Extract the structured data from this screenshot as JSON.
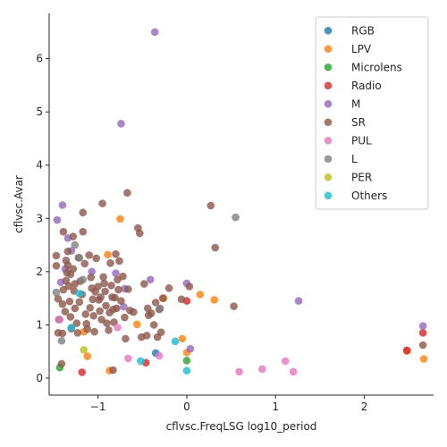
{
  "chart_data": {
    "type": "scatter",
    "title": "",
    "xlabel": "cflvsc.FreqLSG log10_period",
    "ylabel": "cflvsc.Avar",
    "xlim": [
      -1.55,
      2.78
    ],
    "ylim": [
      -0.32,
      6.85
    ],
    "xticks": [
      -1,
      0,
      1,
      2
    ],
    "yticks": [
      0,
      1,
      2,
      3,
      4,
      5,
      6
    ],
    "grid": false,
    "legend_position": "top-right",
    "series": [
      {
        "name": "RGB",
        "color": "#1f77b4",
        "points": [
          [
            -0.35,
            0.47
          ]
        ]
      },
      {
        "name": "LPV",
        "color": "#ff7f0e",
        "points": [
          [
            -0.75,
            2.99
          ],
          [
            -0.89,
            2.32
          ],
          [
            0.15,
            1.57
          ],
          [
            0.31,
            1.47
          ],
          [
            -0.26,
            1.5
          ],
          [
            -0.56,
            1.01
          ],
          [
            -1.16,
            0.87
          ],
          [
            -1.12,
            0.41
          ],
          [
            -0.87,
            0.14
          ],
          [
            0.0,
            0.48
          ],
          [
            2.48,
            0.51
          ],
          [
            2.67,
            0.36
          ],
          [
            -0.05,
            0.74
          ]
        ]
      },
      {
        "name": "Microlens",
        "color": "#2ca02c",
        "points": [
          [
            -1.43,
            0.2
          ],
          [
            0.0,
            0.33
          ]
        ]
      },
      {
        "name": "Radio",
        "color": "#d62728",
        "points": [
          [
            -1.18,
            0.11
          ],
          [
            -0.46,
            0.29
          ],
          [
            0.0,
            1.45
          ],
          [
            2.48,
            0.52
          ],
          [
            2.66,
            0.85
          ]
        ]
      },
      {
        "name": "M",
        "color": "#9467bd",
        "points": [
          [
            -0.36,
            6.5
          ],
          [
            -0.74,
            4.78
          ],
          [
            -1.4,
            3.25
          ],
          [
            -1.46,
            2.97
          ],
          [
            -1.34,
            2.63
          ],
          [
            -1.07,
            2.0
          ],
          [
            -0.41,
            1.85
          ],
          [
            0.0,
            1.78
          ],
          [
            -0.8,
            1.97
          ],
          [
            -0.7,
            1.68
          ],
          [
            -0.71,
            1.34
          ],
          [
            0.04,
            0.55
          ],
          [
            1.26,
            1.45
          ],
          [
            2.66,
            0.98
          ],
          [
            -1.42,
            1.8
          ],
          [
            -1.3,
            2.39
          ],
          [
            -1.37,
            2.05
          ]
        ]
      },
      {
        "name": "SR",
        "color": "#8c564b",
        "points": [
          [
            -1.47,
            2.3
          ],
          [
            -1.47,
            2.11
          ],
          [
            -1.45,
            1.49
          ],
          [
            -1.44,
            1.1
          ],
          [
            -1.45,
            0.85
          ],
          [
            -1.4,
            0.84
          ],
          [
            -1.4,
            1.39
          ],
          [
            -1.39,
            2.75
          ],
          [
            -1.36,
            2.21
          ],
          [
            -1.34,
            2.38
          ],
          [
            -1.35,
            1.98
          ],
          [
            -1.33,
            1.73
          ],
          [
            -1.32,
            1.44
          ],
          [
            -1.31,
            1.15
          ],
          [
            -1.3,
            0.93
          ],
          [
            -1.28,
            2.66
          ],
          [
            -1.28,
            2.05
          ],
          [
            -1.27,
            1.64
          ],
          [
            -1.26,
            1.31
          ],
          [
            -1.24,
            1.03
          ],
          [
            -1.23,
            0.85
          ],
          [
            -1.22,
            2.26
          ],
          [
            -1.2,
            1.82
          ],
          [
            -1.18,
            1.57
          ],
          [
            -1.17,
            3.11
          ],
          [
            -1.17,
            2.75
          ],
          [
            -1.15,
            2.15
          ],
          [
            -1.14,
            1.2
          ],
          [
            -1.13,
            1.02
          ],
          [
            -1.12,
            0.92
          ],
          [
            -1.1,
            2.31
          ],
          [
            -1.08,
            1.89
          ],
          [
            -1.07,
            1.69
          ],
          [
            -1.06,
            1.48
          ],
          [
            -1.05,
            1.17
          ],
          [
            -1.04,
            0.87
          ],
          [
            -1.02,
            2.25
          ],
          [
            -1.0,
            1.72
          ],
          [
            -0.99,
            1.47
          ],
          [
            -0.98,
            1.26
          ],
          [
            -0.96,
            1.1
          ],
          [
            -0.95,
            3.28
          ],
          [
            -0.94,
            1.9
          ],
          [
            -0.92,
            1.63
          ],
          [
            -0.91,
            1.36
          ],
          [
            -0.9,
            1.03
          ],
          [
            -0.88,
            0.9
          ],
          [
            -0.86,
            2.16
          ],
          [
            -0.85,
            1.74
          ],
          [
            -0.84,
            1.52
          ],
          [
            -0.83,
            1.29
          ],
          [
            -0.82,
            1.05
          ],
          [
            -0.83,
            0.15
          ],
          [
            -0.8,
            2.33
          ],
          [
            -0.78,
            1.85
          ],
          [
            -0.77,
            1.66
          ],
          [
            -0.76,
            2.2
          ],
          [
            -0.74,
            1.45
          ],
          [
            -0.72,
            1.91
          ],
          [
            -0.7,
            1.14
          ],
          [
            -0.69,
            0.74
          ],
          [
            -0.67,
            3.48
          ],
          [
            -0.66,
            1.67
          ],
          [
            -0.64,
            1.27
          ],
          [
            -0.6,
            1.24
          ],
          [
            -0.55,
            2.82
          ],
          [
            -0.53,
            2.72
          ],
          [
            -0.51,
            0.77
          ],
          [
            -0.48,
            1.77
          ],
          [
            -0.45,
            0.8
          ],
          [
            -0.44,
            1.31
          ],
          [
            -0.43,
            1.18
          ],
          [
            -0.4,
            1.22
          ],
          [
            -0.37,
            1.0
          ],
          [
            -0.35,
            1.42
          ],
          [
            -0.33,
            0.77
          ],
          [
            -0.31,
            1.29
          ],
          [
            -0.29,
            0.86
          ],
          [
            -0.27,
            1.5
          ],
          [
            -0.2,
            1.69
          ],
          [
            -0.06,
            1.48
          ],
          [
            0.03,
            1.72
          ],
          [
            0.27,
            3.24
          ],
          [
            0.32,
            2.45
          ],
          [
            0.53,
            1.35
          ],
          [
            2.66,
            0.62
          ],
          [
            -1.41,
            0.27
          ],
          [
            -1.39,
            1.66
          ],
          [
            -1.37,
            1.25
          ],
          [
            -1.34,
            2.12
          ],
          [
            -1.36,
            1.83
          ],
          [
            -1.31,
            1.95
          ],
          [
            -1.26,
            1.77
          ],
          [
            -1.21,
            1.43
          ],
          [
            -1.09,
            1.32
          ],
          [
            -1.03,
            1.62
          ],
          [
            -0.97,
            1.52
          ],
          [
            -0.93,
            1.78
          ],
          [
            -0.87,
            1.23
          ],
          [
            -0.81,
            1.51
          ],
          [
            -0.79,
            1.31
          ]
        ]
      },
      {
        "name": "PUL",
        "color": "#e377c2",
        "points": [
          [
            -1.43,
            1.1
          ],
          [
            -0.78,
            0.95
          ],
          [
            -0.66,
            0.37
          ],
          [
            -0.31,
            0.42
          ],
          [
            0.59,
            0.12
          ],
          [
            0.85,
            0.17
          ],
          [
            1.11,
            0.32
          ],
          [
            1.2,
            0.12
          ]
        ]
      },
      {
        "name": "L",
        "color": "#7f7f7f",
        "points": [
          [
            -1.47,
            1.61
          ],
          [
            -1.41,
            0.7
          ],
          [
            -1.26,
            2.5
          ],
          [
            -1.21,
            2.26
          ],
          [
            -1.17,
            1.85
          ],
          [
            -0.3,
            1.31
          ],
          [
            0.55,
            3.02
          ]
        ]
      },
      {
        "name": "PER",
        "color": "#bcbd22",
        "points": [
          [
            -1.16,
            0.53
          ]
        ]
      },
      {
        "name": "Others",
        "color": "#17becf",
        "points": [
          [
            -1.3,
            0.95
          ],
          [
            -1.21,
            1.59
          ],
          [
            -0.52,
            0.32
          ],
          [
            -0.13,
            0.69
          ],
          [
            0.0,
            0.14
          ]
        ]
      }
    ]
  }
}
